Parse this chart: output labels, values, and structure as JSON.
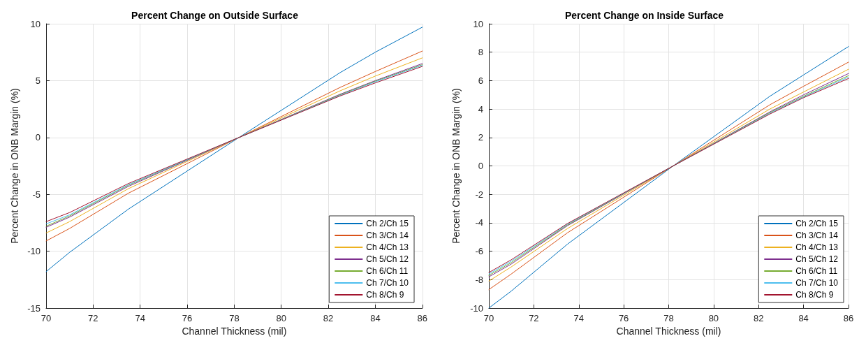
{
  "chart_data": [
    {
      "type": "line",
      "title": "Percent Change on Outside Surface",
      "xlabel": "Channel Thickness (mil)",
      "ylabel": "Percent Change in ONB Margin (%)",
      "x": [
        70,
        71,
        73.5,
        78.2,
        82.5,
        84,
        86
      ],
      "xlim": [
        70,
        86
      ],
      "xticks": [
        70,
        72,
        74,
        76,
        78,
        80,
        82,
        84,
        86
      ],
      "ylim": [
        -15,
        10
      ],
      "yticks": [
        -15,
        -10,
        -5,
        0,
        5,
        10
      ],
      "grid": true,
      "legend": "bottom right",
      "marker": "none",
      "line_style": "solid",
      "series": [
        {
          "name": "Ch 2/Ch 15",
          "color": "#0072bd",
          "values": [
            -11.8,
            -10.1,
            -6.3,
            0,
            5.7,
            7.5,
            9.7
          ]
        },
        {
          "name": "Ch 3/Ch 14",
          "color": "#d95319",
          "values": [
            -9.1,
            -8.0,
            -4.9,
            0,
            4.4,
            5.8,
            7.6
          ]
        },
        {
          "name": "Ch 4/Ch 13",
          "color": "#edb120",
          "values": [
            -8.4,
            -7.4,
            -4.5,
            0,
            4.1,
            5.4,
            7.0
          ]
        },
        {
          "name": "Ch 5/Ch 12",
          "color": "#7e2f8e",
          "values": [
            -7.9,
            -7.0,
            -4.3,
            0,
            3.8,
            5.0,
            6.5
          ]
        },
        {
          "name": "Ch 6/Ch 11",
          "color": "#77ac30",
          "values": [
            -7.8,
            -6.9,
            -4.2,
            0,
            3.75,
            4.95,
            6.4
          ]
        },
        {
          "name": "Ch 7/Ch 10",
          "color": "#4dbeee",
          "values": [
            -7.6,
            -6.8,
            -4.15,
            0,
            3.7,
            4.9,
            6.35
          ]
        },
        {
          "name": "Ch 8/Ch 9",
          "color": "#a2142f",
          "values": [
            -7.4,
            -6.6,
            -4.05,
            0,
            3.65,
            4.8,
            6.25
          ]
        }
      ]
    },
    {
      "type": "line",
      "title": "Percent Change on Inside Surface",
      "xlabel": "Channel Thickness (mil)",
      "ylabel": "Percent Change in ONB Margin (%)",
      "x": [
        70,
        71,
        73.5,
        78.2,
        82.5,
        84,
        86
      ],
      "xlim": [
        70,
        86
      ],
      "xticks": [
        70,
        72,
        74,
        76,
        78,
        80,
        82,
        84,
        86
      ],
      "ylim": [
        -10,
        10
      ],
      "yticks": [
        -10,
        -8,
        -6,
        -4,
        -2,
        0,
        2,
        4,
        6,
        8,
        10
      ],
      "grid": true,
      "legend": "bottom right",
      "marker": "none",
      "line_style": "solid",
      "series": [
        {
          "name": "Ch 2/Ch 15",
          "color": "#0072bd",
          "values": [
            -10,
            -8.8,
            -5.5,
            0,
            4.9,
            6.4,
            8.4
          ]
        },
        {
          "name": "Ch 3/Ch 14",
          "color": "#d95319",
          "values": [
            -8.7,
            -7.6,
            -4.7,
            0,
            4.3,
            5.6,
            7.3
          ]
        },
        {
          "name": "Ch 4/Ch 13",
          "color": "#edb120",
          "values": [
            -8.1,
            -7.1,
            -4.4,
            0,
            4.0,
            5.2,
            6.8
          ]
        },
        {
          "name": "Ch 5/Ch 12",
          "color": "#7e2f8e",
          "values": [
            -7.8,
            -6.9,
            -4.2,
            0,
            3.8,
            5.0,
            6.5
          ]
        },
        {
          "name": "Ch 6/Ch 11",
          "color": "#77ac30",
          "values": [
            -7.7,
            -6.8,
            -4.15,
            0,
            3.75,
            4.9,
            6.35
          ]
        },
        {
          "name": "Ch 7/Ch 10",
          "color": "#4dbeee",
          "values": [
            -7.6,
            -6.7,
            -4.1,
            0,
            3.7,
            4.85,
            6.25
          ]
        },
        {
          "name": "Ch 8/Ch 9",
          "color": "#a2142f",
          "values": [
            -7.5,
            -6.6,
            -4.05,
            0,
            3.65,
            4.8,
            6.15
          ]
        }
      ]
    }
  ]
}
